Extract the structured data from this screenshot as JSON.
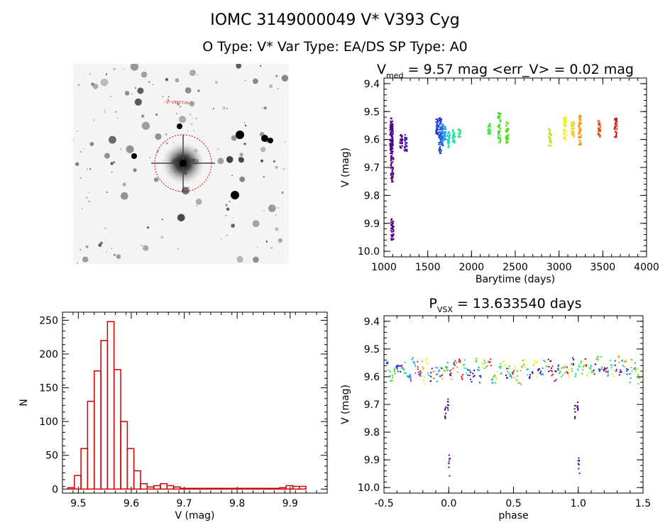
{
  "header": {
    "title": "IOMC 3149000049    V* V393 Cyg",
    "subtitle": "O Type: V*  Var Type: EA/DS  SP Type: A0"
  },
  "image_panel": {
    "target_label": "V* V393 Cyg"
  },
  "lc_title": {
    "pre": "V",
    "sub": "med",
    "post": " = 9.57 mag <err_V> = 0.02 mag"
  },
  "phase_title": {
    "pre": "P",
    "sub": "VSX",
    "post": " = 13.633540 days"
  },
  "chart_data": [
    {
      "type": "scatter",
      "name": "light-curve",
      "xlabel": "Barytime (days)",
      "ylabel": "V (mag)",
      "xlim": [
        1000,
        4000
      ],
      "ylim": [
        10.02,
        9.38
      ],
      "xticks": [
        1000,
        1500,
        2000,
        2500,
        3000,
        3500,
        4000
      ],
      "yticks": [
        9.4,
        9.5,
        9.6,
        9.7,
        9.8,
        9.9,
        10.0
      ],
      "groups": [
        {
          "x": 1075,
          "color": "#55008a",
          "y": [
            9.52,
            9.66
          ]
        },
        {
          "x": 1080,
          "color": "#55008a",
          "y": [
            9.53,
            9.65
          ]
        },
        {
          "x": 1085,
          "color": "#55008a",
          "y": [
            9.66,
            9.75
          ]
        },
        {
          "x": 1088,
          "color": "#55008a",
          "y": [
            9.88,
            9.96
          ]
        },
        {
          "x": 1190,
          "color": "#55008a",
          "y": [
            9.58,
            9.63
          ]
        },
        {
          "x": 1240,
          "color": "#3a1fae",
          "y": [
            9.58,
            9.64
          ]
        },
        {
          "x": 1600,
          "color": "#1e40d8",
          "y": [
            9.52,
            9.58
          ]
        },
        {
          "x": 1635,
          "color": "#1e40d8",
          "y": [
            9.52,
            9.65
          ]
        },
        {
          "x": 1655,
          "color": "#1e6fe8",
          "y": [
            9.54,
            9.62
          ]
        },
        {
          "x": 1685,
          "color": "#1aa3e0",
          "y": [
            9.55,
            9.6
          ]
        },
        {
          "x": 1730,
          "color": "#19d6c8",
          "y": [
            9.57,
            9.63
          ]
        },
        {
          "x": 1790,
          "color": "#24e0a0",
          "y": [
            9.56,
            9.61
          ]
        },
        {
          "x": 1855,
          "color": "#30e08a",
          "y": [
            9.56,
            9.59
          ]
        },
        {
          "x": 2195,
          "color": "#3ee040",
          "y": [
            9.54,
            9.58
          ]
        },
        {
          "x": 2310,
          "color": "#44dd22",
          "y": [
            9.5,
            9.61
          ]
        },
        {
          "x": 2400,
          "color": "#55dd22",
          "y": [
            9.53,
            9.61
          ]
        },
        {
          "x": 2890,
          "color": "#b8e020",
          "y": [
            9.56,
            9.62
          ]
        },
        {
          "x": 3060,
          "color": "#f0ea20",
          "y": [
            9.51,
            9.6
          ]
        },
        {
          "x": 3150,
          "color": "#f2d01e",
          "y": [
            9.53,
            9.59
          ]
        },
        {
          "x": 3230,
          "color": "#f39a1a",
          "y": [
            9.51,
            9.62
          ]
        },
        {
          "x": 3450,
          "color": "#e84a18",
          "y": [
            9.53,
            9.59
          ]
        },
        {
          "x": 3640,
          "color": "#d81818",
          "y": [
            9.52,
            9.59
          ]
        }
      ]
    },
    {
      "type": "bar",
      "name": "histogram",
      "xlabel": "V (mag)",
      "ylabel": "N",
      "xlim": [
        9.47,
        9.97
      ],
      "ylim": [
        -6,
        262
      ],
      "xticks": [
        9.5,
        9.6,
        9.7,
        9.8,
        9.9
      ],
      "yticks": [
        0,
        50,
        100,
        150,
        200,
        250
      ],
      "bin_start": 9.48,
      "bin_width": 0.0125,
      "counts": [
        2,
        20,
        60,
        130,
        175,
        220,
        248,
        177,
        100,
        60,
        27,
        8,
        3,
        5,
        8,
        5,
        3,
        1,
        1,
        1,
        1,
        1,
        1,
        1,
        1,
        1,
        1,
        1,
        1,
        1,
        1,
        1,
        2,
        5,
        4,
        4,
        0,
        0,
        0,
        0
      ]
    },
    {
      "type": "scatter",
      "name": "phased-light-curve",
      "xlabel": "phase",
      "ylabel": "V (mag)",
      "xlim": [
        -0.5,
        1.5
      ],
      "ylim": [
        10.02,
        9.38
      ],
      "xticks": [
        -0.5,
        0.0,
        0.5,
        1.0,
        1.5
      ],
      "yticks": [
        9.4,
        9.5,
        9.6,
        9.7,
        9.8,
        9.9,
        10.0
      ],
      "series_colors": [
        "#55008a",
        "#1e40d8",
        "#1aa3e0",
        "#24e0a0",
        "#44dd22",
        "#f0ea20",
        "#f39a1a",
        "#d81818"
      ],
      "eclipse": [
        {
          "x": -0.03,
          "y": [
            9.7,
            9.75
          ]
        },
        {
          "x": -0.01,
          "y": [
            9.67,
            9.72
          ]
        },
        {
          "x": 0.0,
          "y": [
            9.88,
            9.96
          ]
        },
        {
          "x": 0.97,
          "y": [
            9.7,
            9.75
          ]
        },
        {
          "x": 0.99,
          "y": [
            9.67,
            9.72
          ]
        },
        {
          "x": 1.0,
          "y": [
            9.88,
            9.96
          ]
        }
      ]
    }
  ]
}
